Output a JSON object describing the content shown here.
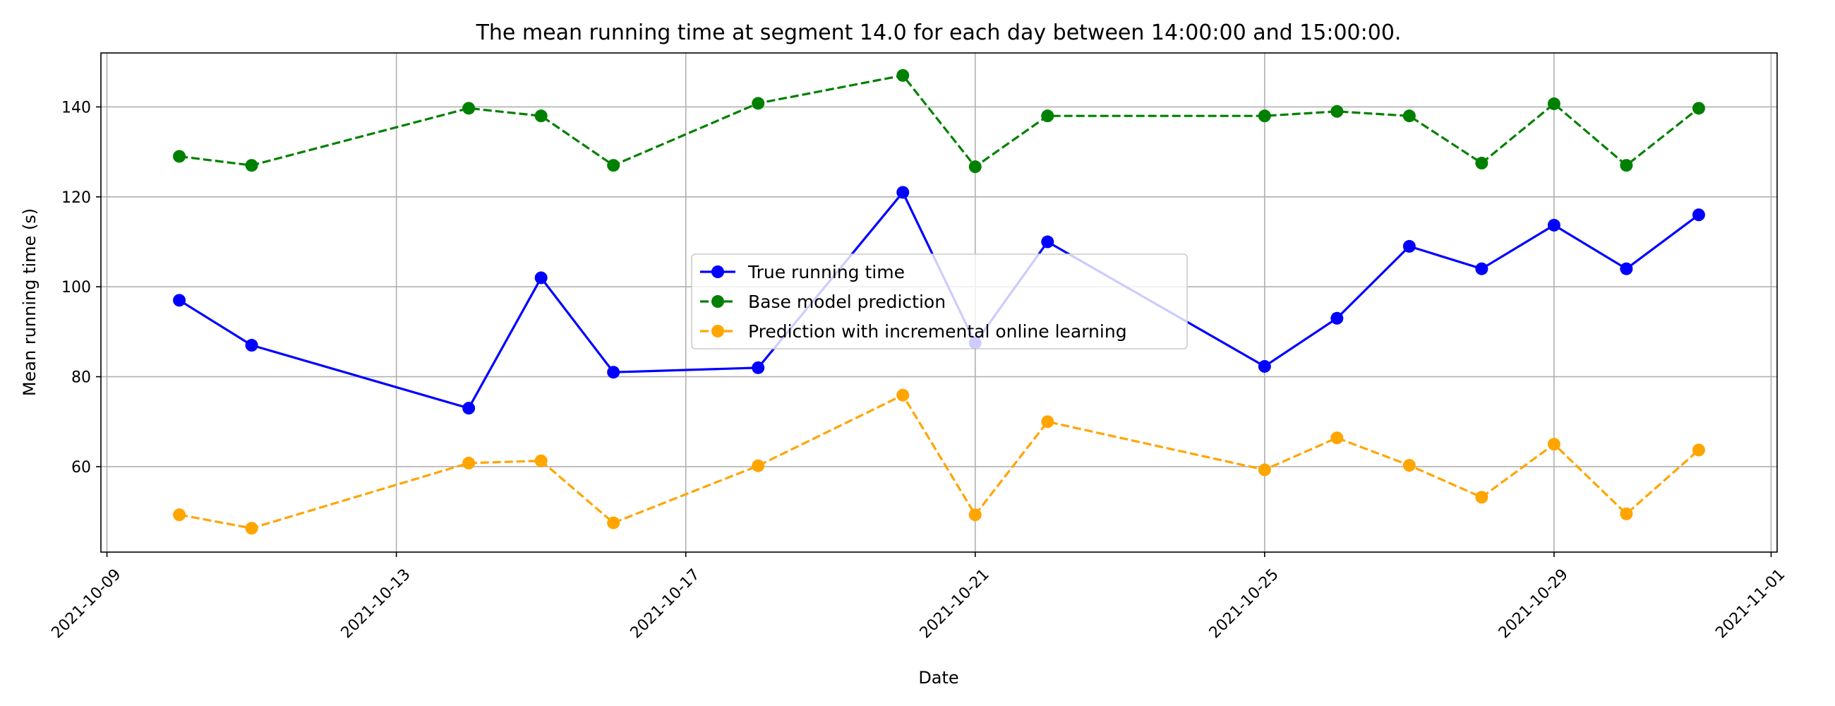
{
  "chart_data": {
    "type": "line",
    "title": "The mean running time at segment 14.0 for each day between 14:00:00 and 15:00:00.",
    "xlabel": "Date",
    "ylabel": "Mean running time (s)",
    "x_ticks": [
      "2021-10-09",
      "2021-10-13",
      "2021-10-17",
      "2021-10-21",
      "2021-10-25",
      "2021-10-29",
      "2021-11-01"
    ],
    "y_ticks": [
      60,
      80,
      100,
      120,
      140
    ],
    "xlim": [
      "2021-10-08T22:00",
      "2021-11-01T02:00"
    ],
    "ylim": [
      41,
      152
    ],
    "grid": true,
    "legend_position": "center",
    "x": [
      "2021-10-10",
      "2021-10-11",
      "2021-10-14",
      "2021-10-15",
      "2021-10-16",
      "2021-10-18",
      "2021-10-20",
      "2021-10-21",
      "2021-10-22",
      "2021-10-25",
      "2021-10-26",
      "2021-10-27",
      "2021-10-28",
      "2021-10-29",
      "2021-10-30",
      "2021-10-31"
    ],
    "series": [
      {
        "name": "True running time",
        "color": "#0000ff",
        "linestyle": "solid",
        "values": [
          97,
          87,
          73,
          102,
          81,
          82,
          121,
          87.5,
          110,
          82.3,
          93,
          109,
          104,
          113.7,
          104,
          116
        ]
      },
      {
        "name": "Base model prediction",
        "color": "#008000",
        "linestyle": "dashed",
        "values": [
          129,
          127,
          139.7,
          138,
          127,
          140.8,
          147,
          126.7,
          138,
          138,
          139,
          138,
          127.5,
          140.7,
          127,
          139.7
        ]
      },
      {
        "name": "Prediction with incremental online learning",
        "color": "#ffa500",
        "linestyle": "dashed",
        "values": [
          49.3,
          46.3,
          60.8,
          61.3,
          47.5,
          60.2,
          75.9,
          49.3,
          70,
          59.3,
          66.4,
          60.3,
          53.2,
          65,
          49.5,
          63.7
        ]
      }
    ]
  }
}
